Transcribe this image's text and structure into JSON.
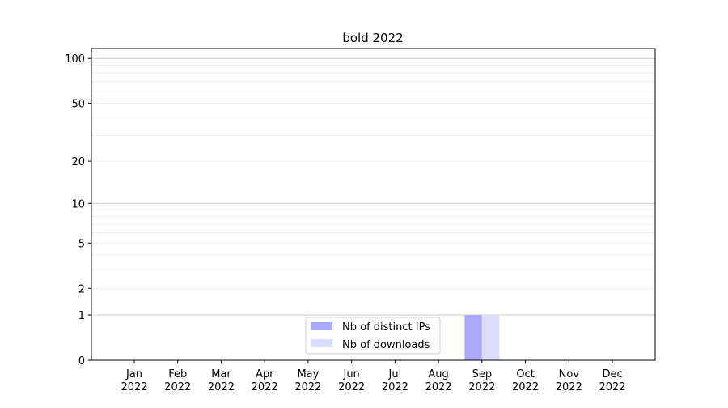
{
  "chart_data": {
    "type": "bar",
    "title": "bold 2022",
    "xlabel": "",
    "ylabel": "",
    "y_scale": "symlog (log of 1+y)",
    "ylim": [
      0,
      116
    ],
    "yticks": [
      0,
      1,
      2,
      5,
      10,
      20,
      50,
      100
    ],
    "ytick_labels": [
      "0",
      "1",
      "2",
      "5",
      "10",
      "20",
      "50",
      "100"
    ],
    "grid": "horizontal major and minor",
    "categories": [
      "Jan\n2022",
      "Feb\n2022",
      "Mar\n2022",
      "Apr\n2022",
      "May\n2022",
      "Jun\n2022",
      "Jul\n2022",
      "Aug\n2022",
      "Sep\n2022",
      "Oct\n2022",
      "Nov\n2022",
      "Dec\n2022"
    ],
    "month_labels": [
      "Jan",
      "Feb",
      "Mar",
      "Apr",
      "May",
      "Jun",
      "Jul",
      "Aug",
      "Sep",
      "Oct",
      "Nov",
      "Dec"
    ],
    "year_label": "2022",
    "series": [
      {
        "name": "Nb of distinct IPs",
        "color": "#aaaaff",
        "values": [
          0,
          0,
          0,
          0,
          0,
          0,
          0,
          0,
          1,
          0,
          0,
          0
        ]
      },
      {
        "name": "Nb of downloads",
        "color": "#ddddff",
        "values": [
          0,
          0,
          0,
          0,
          0,
          0,
          0,
          0,
          1,
          0,
          0,
          0
        ]
      }
    ],
    "legend_position": "lower center"
  }
}
